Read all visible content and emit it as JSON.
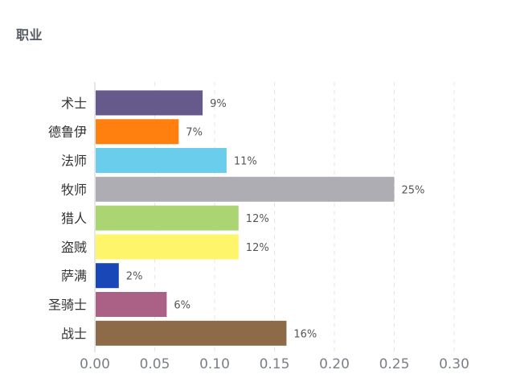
{
  "panel": {
    "title": "职业"
  },
  "chart_data": {
    "type": "bar",
    "orientation": "horizontal",
    "categories": [
      "术士",
      "德鲁伊",
      "法师",
      "牧师",
      "猎人",
      "盗贼",
      "萨满",
      "圣骑士",
      "战士"
    ],
    "values": [
      0.09,
      0.07,
      0.11,
      0.25,
      0.12,
      0.12,
      0.02,
      0.06,
      0.16
    ],
    "value_labels": [
      "9%",
      "7%",
      "11%",
      "25%",
      "12%",
      "12%",
      "2%",
      "6%",
      "16%"
    ],
    "colors": [
      "#665a8c",
      "#ff7f0f",
      "#69cdeb",
      "#aeadb3",
      "#abd473",
      "#fff56a",
      "#1a47b8",
      "#ab6185",
      "#8d6a48"
    ],
    "x_ticks": [
      "0.00",
      "0.05",
      "0.10",
      "0.15",
      "0.20",
      "0.25",
      "0.30"
    ],
    "xlim": [
      0,
      0.3
    ],
    "grid": "vertical dashed",
    "legend": "none"
  }
}
